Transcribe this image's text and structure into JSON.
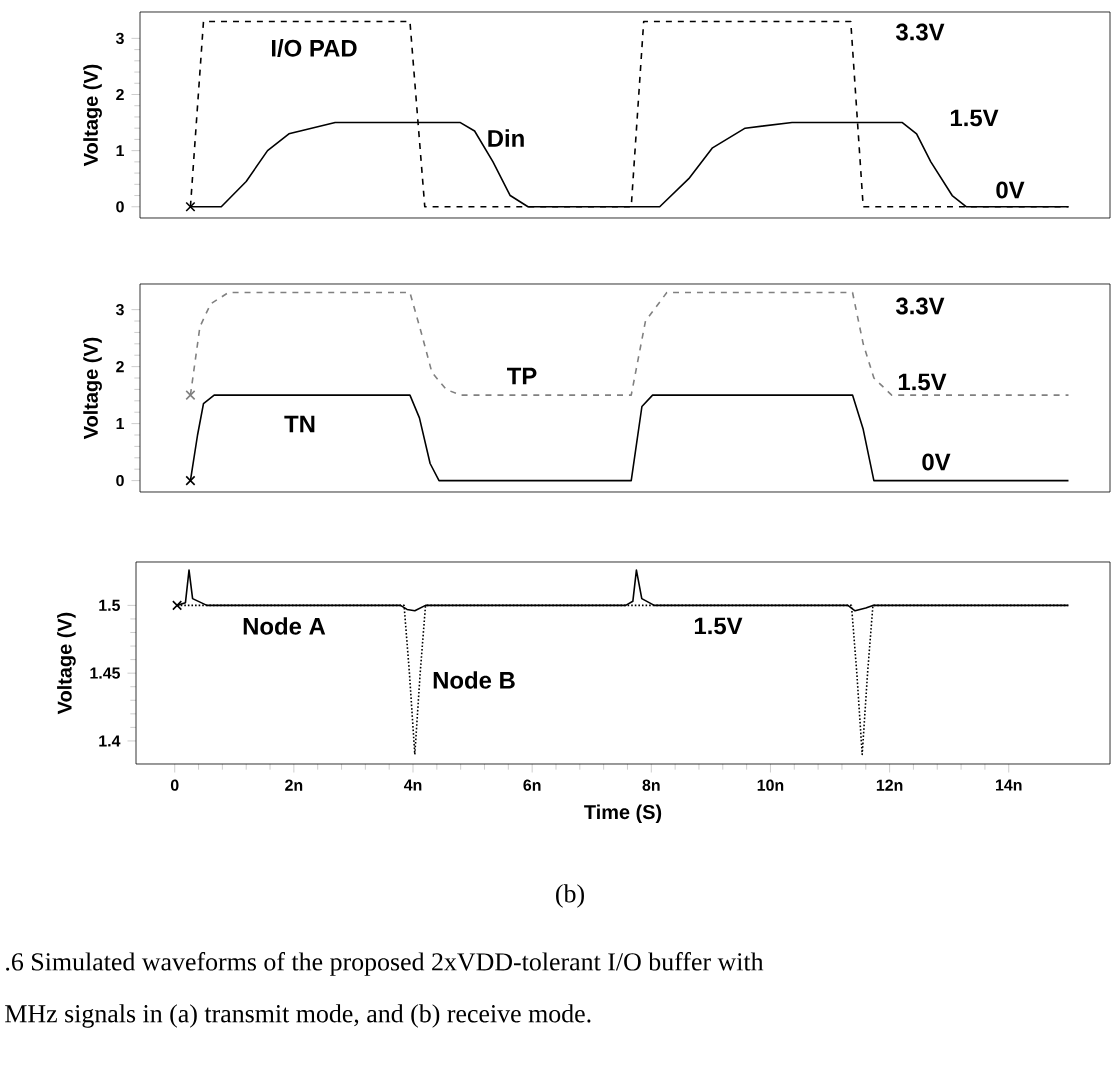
{
  "chart_data": [
    {
      "type": "line",
      "ylabel": "Voltage (V)",
      "xlim": [
        -0.65,
        15.7
      ],
      "ylim": [
        -0.2,
        3.47
      ],
      "yticks": [
        0,
        1,
        2,
        3
      ],
      "tick_labels": "y",
      "series": [
        {
          "color": "#000000",
          "line_style": "dashed",
          "x": [
            0.2,
            0.42,
            3.9,
            4.15,
            7.63,
            7.84,
            11.33,
            11.54,
            15.0
          ],
          "values": [
            0,
            3.3,
            3.3,
            0,
            0,
            3.3,
            3.3,
            0,
            0
          ]
        },
        {
          "color": "#000000",
          "line_style": "solid",
          "x": [
            0.2,
            0.72,
            1.14,
            1.5,
            1.86,
            2.64,
            4.75,
            4.99,
            5.3,
            5.59,
            5.89,
            8.11,
            8.6,
            9.0,
            9.55,
            10.34,
            12.2,
            12.44,
            12.68,
            13.04,
            13.28,
            15.0
          ],
          "values": [
            0,
            0,
            0.45,
            1.0,
            1.3,
            1.5,
            1.5,
            1.35,
            0.8,
            0.2,
            0,
            0,
            0.5,
            1.05,
            1.4,
            1.5,
            1.5,
            1.3,
            0.8,
            0.2,
            0,
            0
          ]
        },
        {
          "type": "scatter",
          "marker": "cross",
          "color": "#000000",
          "x": [
            0.2
          ],
          "values": [
            0
          ]
        }
      ],
      "annotations": [
        "I/O PAD",
        "Din",
        "3.3V",
        "1.5V",
        "0V"
      ]
    },
    {
      "type": "line",
      "ylabel": "Voltage (V)",
      "xlim": [
        -0.65,
        15.7
      ],
      "ylim": [
        -0.2,
        3.45
      ],
      "yticks": [
        0,
        1,
        2,
        3
      ],
      "tick_labels": "y",
      "series": [
        {
          "color": "#808080",
          "line_style": "dashed",
          "x": [
            0.2,
            0.36,
            0.54,
            0.84,
            3.9,
            4.09,
            4.27,
            4.51,
            4.75,
            7.63,
            7.87,
            8.23,
            11.36,
            11.54,
            11.72,
            12.02,
            15.0
          ],
          "values": [
            1.5,
            2.7,
            3.1,
            3.3,
            3.3,
            2.6,
            1.9,
            1.6,
            1.5,
            1.5,
            2.8,
            3.3,
            3.3,
            2.4,
            1.8,
            1.5,
            1.5
          ]
        },
        {
          "color": "#000000",
          "line_style": "solid",
          "x": [
            0.2,
            0.32,
            0.42,
            0.6,
            3.9,
            4.06,
            4.24,
            4.39,
            7.63,
            7.81,
            7.99,
            11.36,
            11.54,
            11.72,
            15.0
          ],
          "values": [
            0,
            0.8,
            1.35,
            1.5,
            1.5,
            1.1,
            0.3,
            0,
            0,
            1.3,
            1.5,
            1.5,
            0.9,
            0,
            0
          ]
        },
        {
          "type": "scatter",
          "marker": "cross",
          "color": "#808080",
          "x": [
            0.2
          ],
          "values": [
            1.5
          ]
        },
        {
          "type": "scatter",
          "marker": "cross",
          "color": "#000000",
          "x": [
            0.2
          ],
          "values": [
            0
          ]
        }
      ],
      "annotations": [
        "TP",
        "TN",
        "3.3V",
        "1.5V",
        "0V"
      ]
    },
    {
      "type": "line",
      "ylabel": "Voltage (V)",
      "xlabel": "Time (S)",
      "xlim": [
        -0.65,
        15.7
      ],
      "ylim": [
        1.383,
        1.532
      ],
      "yticks": [
        1.4,
        1.45,
        1.5
      ],
      "xticks": [
        0,
        {
          "value": 2,
          "label": "2n"
        },
        {
          "value": 4,
          "label": "4n"
        },
        {
          "value": 6,
          "label": "6n"
        },
        {
          "value": 8,
          "label": "8n"
        },
        {
          "value": 10,
          "label": "10n"
        },
        {
          "value": 12,
          "label": "12n"
        },
        {
          "value": 14,
          "label": "14n"
        }
      ],
      "series": [
        {
          "color": "#000000",
          "line_style": "dotted",
          "x": [
            0.04,
            3.85,
            3.94,
            4.03,
            4.12,
            4.21,
            11.36,
            11.45,
            11.54,
            11.63,
            11.72,
            15.0
          ],
          "values": [
            1.5,
            1.5,
            1.45,
            1.39,
            1.45,
            1.5,
            1.5,
            1.45,
            1.39,
            1.45,
            1.5,
            1.5
          ]
        },
        {
          "color": "#000000",
          "line_style": "solid",
          "x": [
            0.04,
            0.18,
            0.24,
            0.3,
            0.54,
            3.79,
            3.9,
            4.03,
            4.21,
            7.57,
            7.69,
            7.75,
            7.84,
            8.05,
            11.3,
            11.42,
            11.6,
            11.72,
            15.0
          ],
          "values": [
            1.5,
            1.502,
            1.526,
            1.505,
            1.5,
            1.5,
            1.497,
            1.496,
            1.5,
            1.5,
            1.503,
            1.526,
            1.505,
            1.5,
            1.5,
            1.496,
            1.498,
            1.5,
            1.5
          ]
        },
        {
          "type": "scatter",
          "marker": "cross",
          "color": "#000000",
          "x": [
            0.04
          ],
          "values": [
            1.5
          ]
        }
      ],
      "annotations": [
        "Node A",
        "Node B",
        "1.5V",
        "(b)",
        ".6 Simulated waveforms of the proposed 2xVDD-tolerant I/O buffer with",
        "MHz signals in (a) transmit mode, and (b) receive mode."
      ]
    }
  ]
}
